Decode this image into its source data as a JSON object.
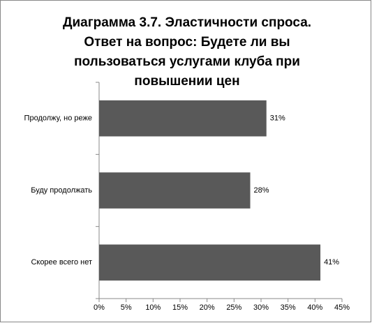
{
  "chart_data": {
    "type": "hbar",
    "title": [
      "Диаграмма 3.7. Эластичности спроса.",
      "Ответ на вопрос: Будете ли вы",
      "пользоваться услугами клуба при",
      "повышении цен"
    ],
    "categories": [
      "Продолжу, но реже",
      "Буду продолжать",
      "Скорее всего нет"
    ],
    "values": [
      31,
      28,
      41
    ],
    "value_labels": [
      "31%",
      "28%",
      "41%"
    ],
    "color": "#595959",
    "xlim": [
      0,
      45
    ],
    "xticks": [
      {
        "value": 0,
        "label": "0%"
      },
      {
        "value": 5,
        "label": "5%"
      },
      {
        "value": 10,
        "label": "10%"
      },
      {
        "value": 15,
        "label": "15%"
      },
      {
        "value": 20,
        "label": "20%"
      },
      {
        "value": 25,
        "label": "25%"
      },
      {
        "value": 30,
        "label": "30%"
      },
      {
        "value": 35,
        "label": "35%"
      },
      {
        "value": 40,
        "label": "40%"
      },
      {
        "value": 45,
        "label": "45%"
      }
    ],
    "grid": false
  }
}
